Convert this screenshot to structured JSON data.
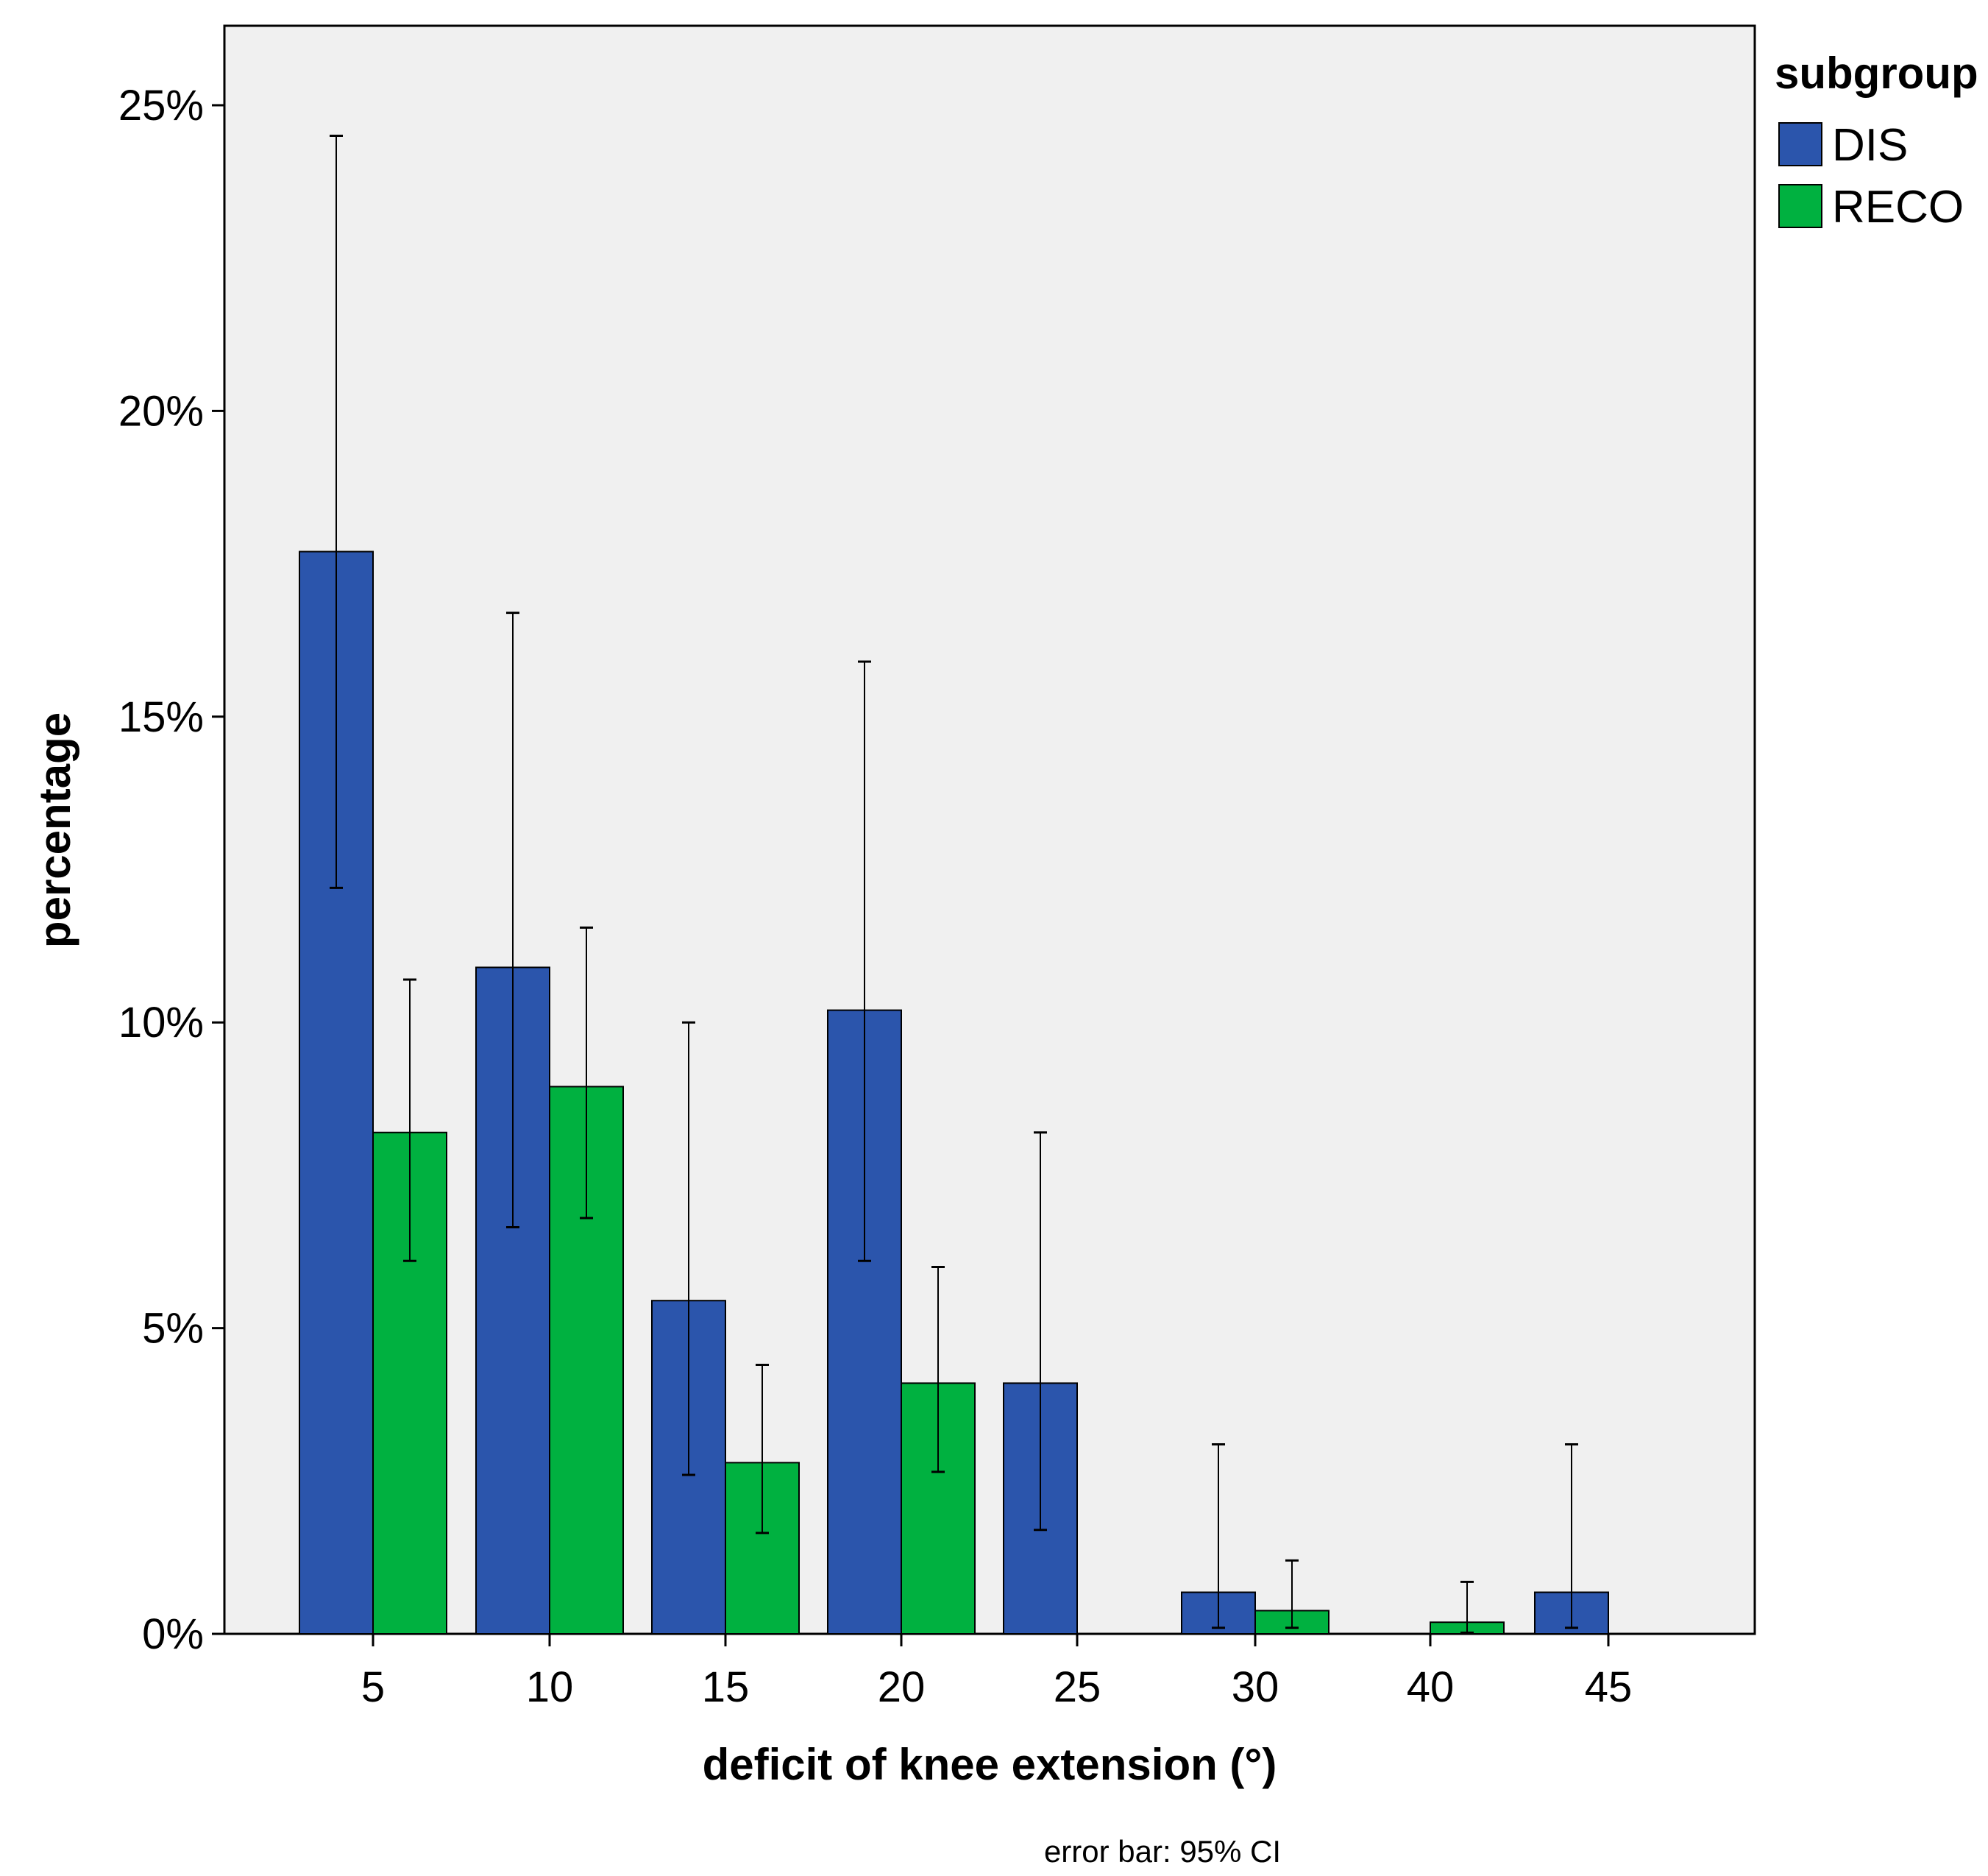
{
  "chart_data": {
    "type": "bar",
    "title": "",
    "xlabel": "deficit of knee extension (°)",
    "ylabel": "percentage",
    "categories": [
      "5",
      "10",
      "15",
      "20",
      "25",
      "30",
      "40",
      "45"
    ],
    "yticks": [
      "0%",
      "5%",
      "10%",
      "15%",
      "20%",
      "25%"
    ],
    "ylim": [
      0,
      26.3
    ],
    "grid": false,
    "legend": {
      "title": "subgroup",
      "position": "top-right"
    },
    "series": [
      {
        "name": "DIS",
        "color": "#2b55ac",
        "values": [
          17.7,
          10.9,
          5.45,
          10.2,
          4.1,
          0.68,
          null,
          0.68
        ],
        "ci_low": [
          12.2,
          6.65,
          2.6,
          6.1,
          1.7,
          0.1,
          null,
          0.1
        ],
        "ci_high": [
          24.5,
          16.7,
          10.0,
          15.9,
          8.2,
          3.1,
          null,
          3.1
        ]
      },
      {
        "name": "RECO",
        "color": "#00b140",
        "values": [
          8.2,
          8.95,
          2.8,
          4.1,
          null,
          0.38,
          0.19,
          null
        ],
        "ci_low": [
          6.1,
          6.8,
          1.65,
          2.65,
          null,
          0.1,
          0.02,
          null
        ],
        "ci_high": [
          10.7,
          11.55,
          4.4,
          6.0,
          null,
          1.2,
          0.85,
          null
        ]
      }
    ],
    "footnote": "error bar: 95% CI"
  }
}
